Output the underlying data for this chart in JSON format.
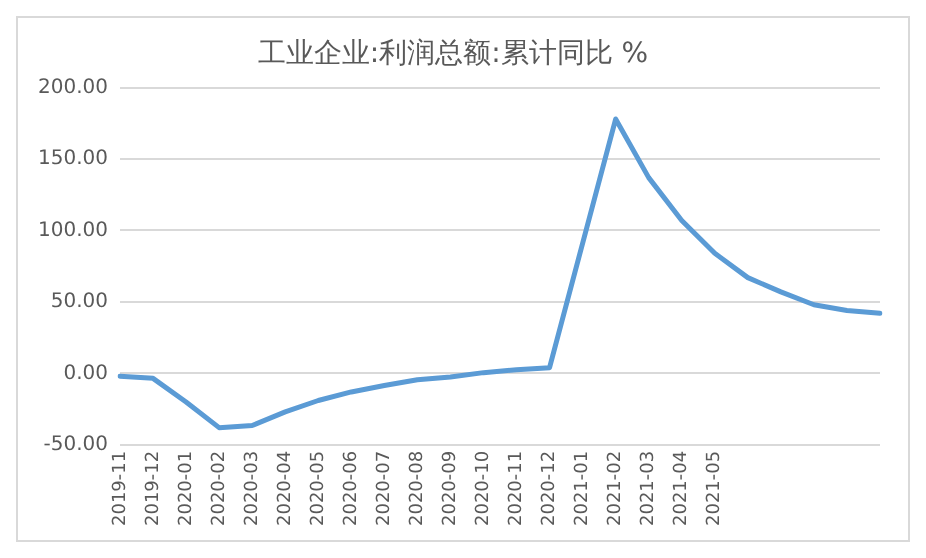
{
  "chart_data": {
    "type": "line",
    "title": "工业企业:利润总额:累计同比 %",
    "categories": [
      "2019-11",
      "2019-12",
      "2020-01",
      "2020-02",
      "2020-03",
      "2020-04",
      "2020-05",
      "2020-06",
      "2020-07",
      "2020-08",
      "2020-09",
      "2020-10",
      "2020-11",
      "2020-12",
      "2021-01",
      "2021-02",
      "2021-03",
      "2021-04",
      "2021-05",
      null,
      null,
      null,
      null,
      null
    ],
    "series": [
      {
        "color": "#5b9bd5",
        "values": [
          -2,
          -3.5,
          -20,
          -38,
          -36.5,
          -27,
          -19,
          -13,
          -8.5,
          -4.5,
          -2.5,
          0.5,
          2.5,
          4,
          91,
          178,
          137,
          107,
          84,
          67,
          57,
          48,
          44,
          42
        ]
      }
    ],
    "ylim": [
      -50,
      200
    ],
    "yticks": [
      {
        "value": -50,
        "label": "-50.00"
      },
      {
        "value": 0,
        "label": "0.00"
      },
      {
        "value": 50,
        "label": "50.00"
      },
      {
        "value": 100,
        "label": "100.00"
      },
      {
        "value": 150,
        "label": "150.00"
      },
      {
        "value": 200,
        "label": "200.00"
      }
    ],
    "grid": "y",
    "legend": false,
    "marker": "none",
    "line_style": "solid"
  }
}
